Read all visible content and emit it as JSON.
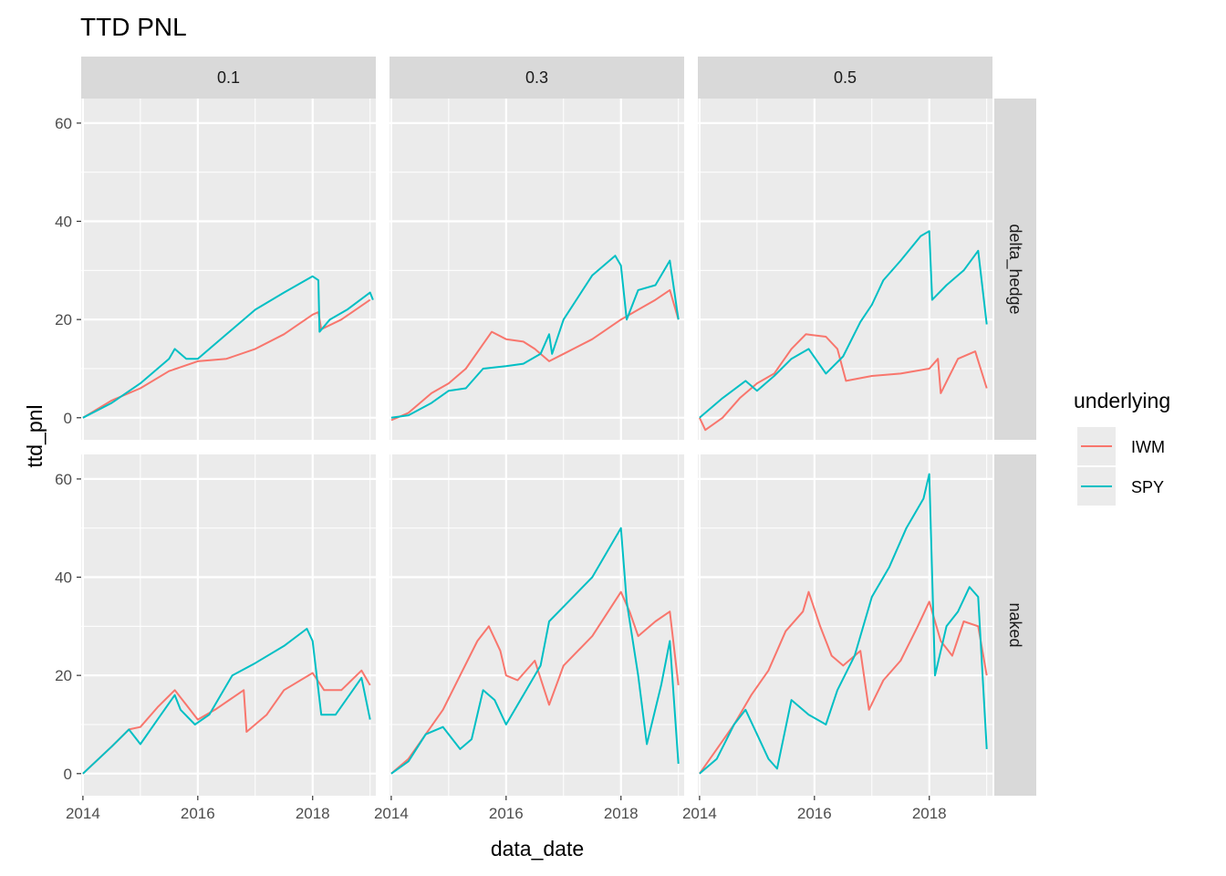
{
  "chart_data": {
    "type": "line",
    "title": "TTD PNL",
    "xlabel": "data_date",
    "ylabel": "ttd_pnl",
    "x_ticks": [
      "2014",
      "2016",
      "2018"
    ],
    "y_ticks": [
      0,
      20,
      40,
      60
    ],
    "xlim": [
      2013.97,
      2019.1
    ],
    "ylim": [
      -4.5,
      65
    ],
    "grid": true,
    "facet_cols": [
      "0.1",
      "0.3",
      "0.5"
    ],
    "facet_rows": [
      "delta_hedge",
      "naked"
    ],
    "legend": {
      "title": "underlying",
      "position": "right",
      "entries": [
        {
          "name": "IWM",
          "color": "#F8766D"
        },
        {
          "name": "SPY",
          "color": "#00BFC4"
        }
      ]
    },
    "panels": [
      {
        "col": "0.1",
        "row": "delta_hedge",
        "series": [
          {
            "name": "IWM",
            "points": [
              [
                2014.0,
                0
              ],
              [
                2014.5,
                3.5
              ],
              [
                2015.0,
                6
              ],
              [
                2015.5,
                9.5
              ],
              [
                2016.0,
                11.5
              ],
              [
                2016.5,
                12
              ],
              [
                2017.0,
                14
              ],
              [
                2017.5,
                17
              ],
              [
                2018.0,
                21
              ],
              [
                2018.1,
                21.5
              ],
              [
                2018.15,
                18
              ],
              [
                2018.5,
                20
              ],
              [
                2019.0,
                24
              ]
            ]
          },
          {
            "name": "SPY",
            "points": [
              [
                2014.0,
                0
              ],
              [
                2014.5,
                3
              ],
              [
                2015.0,
                7
              ],
              [
                2015.5,
                12
              ],
              [
                2015.6,
                14
              ],
              [
                2015.8,
                12
              ],
              [
                2016.0,
                12
              ],
              [
                2016.5,
                17
              ],
              [
                2017.0,
                22
              ],
              [
                2017.5,
                25.5
              ],
              [
                2018.0,
                28.8
              ],
              [
                2018.1,
                28
              ],
              [
                2018.12,
                17.5
              ],
              [
                2018.3,
                20
              ],
              [
                2018.6,
                22
              ],
              [
                2019.0,
                25.5
              ],
              [
                2019.05,
                24
              ]
            ]
          }
        ]
      },
      {
        "col": "0.3",
        "row": "delta_hedge",
        "series": [
          {
            "name": "IWM",
            "points": [
              [
                2014.0,
                -0.5
              ],
              [
                2014.3,
                1
              ],
              [
                2014.7,
                5
              ],
              [
                2015.0,
                7
              ],
              [
                2015.3,
                10
              ],
              [
                2015.6,
                15
              ],
              [
                2015.75,
                17.5
              ],
              [
                2016.0,
                16
              ],
              [
                2016.3,
                15.5
              ],
              [
                2016.5,
                14
              ],
              [
                2016.75,
                11.5
              ],
              [
                2017.0,
                13
              ],
              [
                2017.5,
                16
              ],
              [
                2018.0,
                20
              ],
              [
                2018.3,
                22
              ],
              [
                2018.6,
                24
              ],
              [
                2018.85,
                26
              ],
              [
                2019.0,
                20
              ]
            ]
          },
          {
            "name": "SPY",
            "points": [
              [
                2014.0,
                0
              ],
              [
                2014.3,
                0.5
              ],
              [
                2014.7,
                3
              ],
              [
                2015.0,
                5.5
              ],
              [
                2015.3,
                6
              ],
              [
                2015.6,
                10
              ],
              [
                2016.0,
                10.5
              ],
              [
                2016.3,
                11
              ],
              [
                2016.6,
                13
              ],
              [
                2016.75,
                17
              ],
              [
                2016.8,
                13
              ],
              [
                2017.0,
                20
              ],
              [
                2017.5,
                29
              ],
              [
                2017.9,
                33
              ],
              [
                2018.0,
                31
              ],
              [
                2018.1,
                20
              ],
              [
                2018.3,
                26
              ],
              [
                2018.6,
                27
              ],
              [
                2018.85,
                32
              ],
              [
                2019.0,
                20
              ]
            ]
          }
        ]
      },
      {
        "col": "0.5",
        "row": "delta_hedge",
        "series": [
          {
            "name": "IWM",
            "points": [
              [
                2014.0,
                0
              ],
              [
                2014.1,
                -2.5
              ],
              [
                2014.4,
                0
              ],
              [
                2014.7,
                4
              ],
              [
                2015.0,
                7
              ],
              [
                2015.3,
                9
              ],
              [
                2015.6,
                14
              ],
              [
                2015.85,
                17
              ],
              [
                2016.2,
                16.5
              ],
              [
                2016.4,
                14
              ],
              [
                2016.55,
                7.5
              ],
              [
                2017.0,
                8.5
              ],
              [
                2017.5,
                9
              ],
              [
                2018.0,
                10
              ],
              [
                2018.15,
                12
              ],
              [
                2018.2,
                5
              ],
              [
                2018.5,
                12
              ],
              [
                2018.8,
                13.5
              ],
              [
                2019.0,
                6
              ]
            ]
          },
          {
            "name": "SPY",
            "points": [
              [
                2014.0,
                0
              ],
              [
                2014.4,
                4
              ],
              [
                2014.8,
                7.5
              ],
              [
                2015.0,
                5.5
              ],
              [
                2015.3,
                8.5
              ],
              [
                2015.6,
                12
              ],
              [
                2015.9,
                14
              ],
              [
                2016.2,
                9
              ],
              [
                2016.5,
                12.5
              ],
              [
                2016.8,
                19.5
              ],
              [
                2017.0,
                23
              ],
              [
                2017.2,
                28
              ],
              [
                2017.5,
                32
              ],
              [
                2017.85,
                37
              ],
              [
                2018.0,
                38
              ],
              [
                2018.05,
                24
              ],
              [
                2018.3,
                27
              ],
              [
                2018.6,
                30
              ],
              [
                2018.85,
                34
              ],
              [
                2019.0,
                19
              ]
            ]
          }
        ]
      },
      {
        "col": "0.1",
        "row": "naked",
        "series": [
          {
            "name": "IWM",
            "points": [
              [
                2014.0,
                0
              ],
              [
                2014.5,
                5.5
              ],
              [
                2014.8,
                9
              ],
              [
                2015.0,
                9.5
              ],
              [
                2015.3,
                13.5
              ],
              [
                2015.6,
                17
              ],
              [
                2015.8,
                14
              ],
              [
                2016.0,
                11
              ],
              [
                2016.3,
                13
              ],
              [
                2016.8,
                17
              ],
              [
                2016.85,
                8.5
              ],
              [
                2017.2,
                12
              ],
              [
                2017.5,
                17
              ],
              [
                2018.0,
                20.5
              ],
              [
                2018.2,
                17
              ],
              [
                2018.5,
                17
              ],
              [
                2018.85,
                21
              ],
              [
                2019.0,
                18
              ]
            ]
          },
          {
            "name": "SPY",
            "points": [
              [
                2014.0,
                0
              ],
              [
                2014.5,
                5.5
              ],
              [
                2014.8,
                9
              ],
              [
                2015.0,
                6
              ],
              [
                2015.3,
                11
              ],
              [
                2015.6,
                16
              ],
              [
                2015.7,
                13
              ],
              [
                2015.95,
                10
              ],
              [
                2016.2,
                12
              ],
              [
                2016.6,
                20
              ],
              [
                2017.0,
                22.5
              ],
              [
                2017.5,
                26
              ],
              [
                2017.9,
                29.5
              ],
              [
                2018.0,
                27
              ],
              [
                2018.15,
                12
              ],
              [
                2018.4,
                12
              ],
              [
                2018.85,
                19.5
              ],
              [
                2019.0,
                11
              ]
            ]
          }
        ]
      },
      {
        "col": "0.3",
        "row": "naked",
        "series": [
          {
            "name": "IWM",
            "points": [
              [
                2014.0,
                0
              ],
              [
                2014.3,
                3
              ],
              [
                2014.6,
                8
              ],
              [
                2014.9,
                13
              ],
              [
                2015.2,
                20
              ],
              [
                2015.5,
                27
              ],
              [
                2015.7,
                30
              ],
              [
                2015.9,
                25
              ],
              [
                2016.0,
                20
              ],
              [
                2016.2,
                19
              ],
              [
                2016.5,
                23
              ],
              [
                2016.75,
                14
              ],
              [
                2017.0,
                22
              ],
              [
                2017.5,
                28
              ],
              [
                2018.0,
                37
              ],
              [
                2018.15,
                33
              ],
              [
                2018.3,
                28
              ],
              [
                2018.6,
                31
              ],
              [
                2018.85,
                33
              ],
              [
                2019.0,
                18
              ]
            ]
          },
          {
            "name": "SPY",
            "points": [
              [
                2014.0,
                0
              ],
              [
                2014.3,
                2.5
              ],
              [
                2014.6,
                8
              ],
              [
                2014.9,
                9.5
              ],
              [
                2015.2,
                5
              ],
              [
                2015.4,
                7
              ],
              [
                2015.6,
                17
              ],
              [
                2015.8,
                15
              ],
              [
                2016.0,
                10
              ],
              [
                2016.3,
                16
              ],
              [
                2016.6,
                22
              ],
              [
                2016.75,
                31
              ],
              [
                2017.0,
                34
              ],
              [
                2017.5,
                40
              ],
              [
                2017.9,
                48
              ],
              [
                2018.0,
                50
              ],
              [
                2018.1,
                35
              ],
              [
                2018.3,
                20
              ],
              [
                2018.45,
                6
              ],
              [
                2018.7,
                18
              ],
              [
                2018.85,
                27
              ],
              [
                2019.0,
                2
              ]
            ]
          }
        ]
      },
      {
        "col": "0.5",
        "row": "naked",
        "series": [
          {
            "name": "IWM",
            "points": [
              [
                2014.0,
                0
              ],
              [
                2014.3,
                5
              ],
              [
                2014.6,
                10
              ],
              [
                2014.9,
                16
              ],
              [
                2015.2,
                21
              ],
              [
                2015.5,
                29
              ],
              [
                2015.8,
                33
              ],
              [
                2015.9,
                37
              ],
              [
                2016.1,
                30
              ],
              [
                2016.3,
                24
              ],
              [
                2016.5,
                22
              ],
              [
                2016.8,
                25
              ],
              [
                2016.95,
                13
              ],
              [
                2017.2,
                19
              ],
              [
                2017.5,
                23
              ],
              [
                2017.8,
                30
              ],
              [
                2018.0,
                35
              ],
              [
                2018.2,
                27
              ],
              [
                2018.4,
                24
              ],
              [
                2018.6,
                31
              ],
              [
                2018.85,
                30
              ],
              [
                2019.0,
                20
              ]
            ]
          },
          {
            "name": "SPY",
            "points": [
              [
                2014.0,
                0
              ],
              [
                2014.3,
                3
              ],
              [
                2014.6,
                10
              ],
              [
                2014.8,
                13
              ],
              [
                2015.0,
                8
              ],
              [
                2015.2,
                3
              ],
              [
                2015.35,
                1
              ],
              [
                2015.6,
                15
              ],
              [
                2015.9,
                12
              ],
              [
                2016.2,
                10
              ],
              [
                2016.4,
                17
              ],
              [
                2016.7,
                24
              ],
              [
                2017.0,
                36
              ],
              [
                2017.3,
                42
              ],
              [
                2017.6,
                50
              ],
              [
                2017.9,
                56
              ],
              [
                2018.0,
                61
              ],
              [
                2018.1,
                20
              ],
              [
                2018.3,
                30
              ],
              [
                2018.5,
                33
              ],
              [
                2018.7,
                38
              ],
              [
                2018.85,
                36
              ],
              [
                2019.0,
                5
              ]
            ]
          }
        ]
      }
    ]
  }
}
